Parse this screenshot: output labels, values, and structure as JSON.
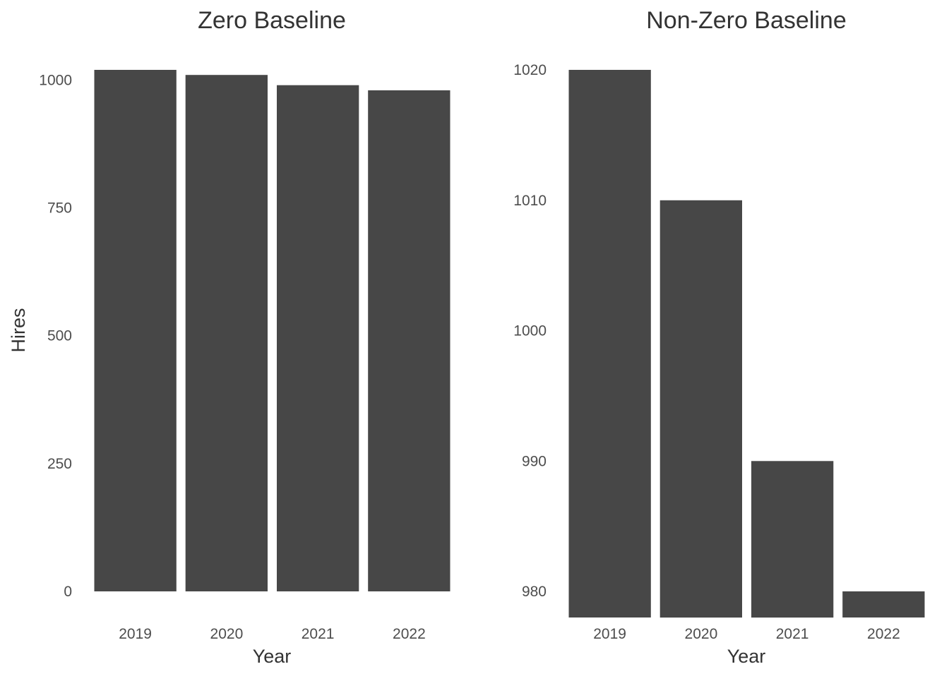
{
  "chart_data": [
    {
      "type": "bar",
      "title": "Zero Baseline",
      "xlabel": "Year",
      "ylabel": "Hires",
      "categories": [
        "2019",
        "2020",
        "2021",
        "2022"
      ],
      "values": [
        1020,
        1010,
        990,
        980
      ],
      "ylim": [
        0,
        1020
      ],
      "yticks": [
        0,
        250,
        500,
        750,
        1000
      ],
      "bar_color": "#474747",
      "grid": false,
      "legend": "none"
    },
    {
      "type": "bar",
      "title": "Non-Zero Baseline",
      "xlabel": "Year",
      "ylabel": "",
      "categories": [
        "2019",
        "2020",
        "2021",
        "2022"
      ],
      "values": [
        1020,
        1010,
        990,
        980
      ],
      "ylim": [
        980,
        1020
      ],
      "yticks": [
        980,
        990,
        1000,
        1010,
        1020
      ],
      "bar_color": "#474747",
      "grid": false,
      "legend": "none"
    }
  ]
}
